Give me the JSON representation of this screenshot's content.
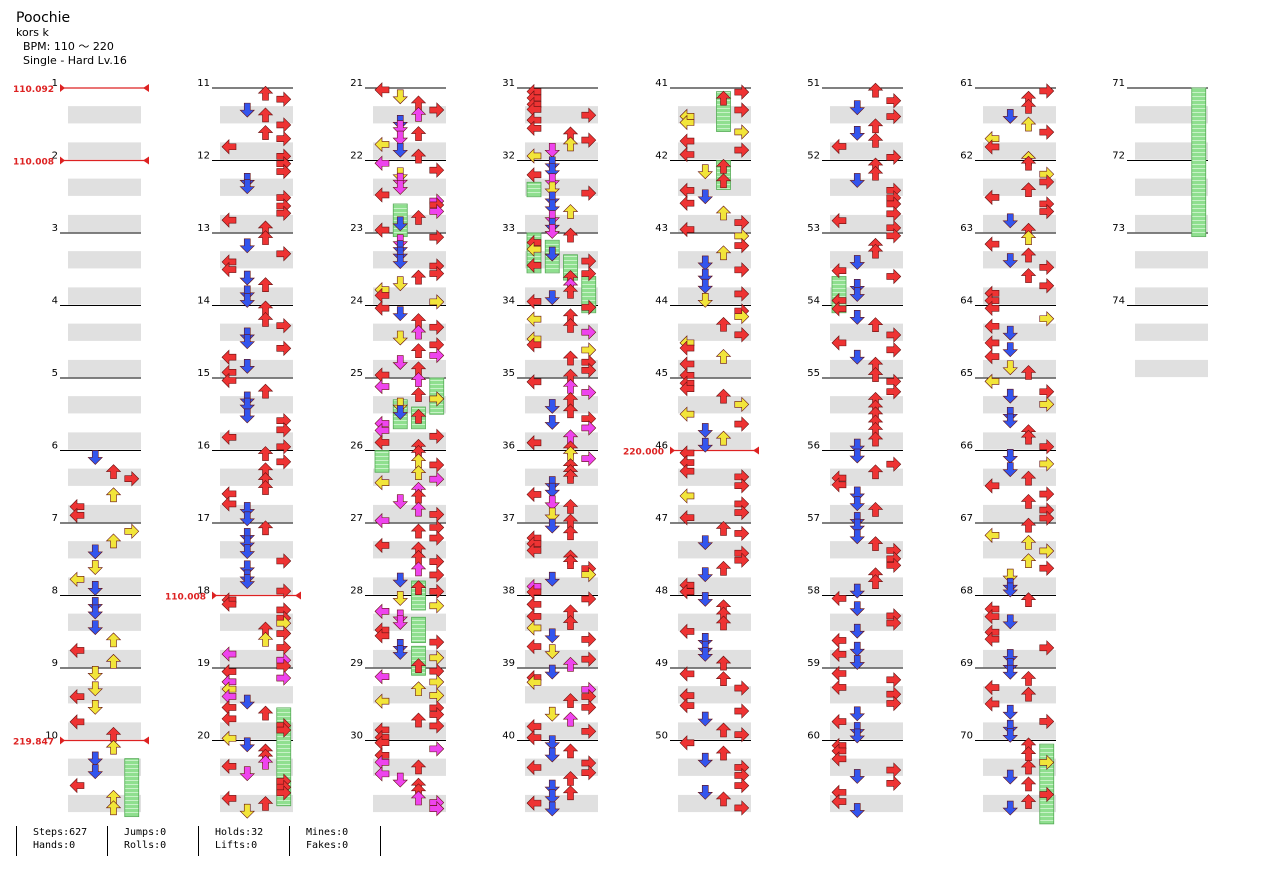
{
  "song": {
    "title": "Poochie",
    "artist": "kors k",
    "bpm_text": "BPM: 110 ～ 220",
    "difficulty_text": "Single - Hard  Lv.16"
  },
  "chart_columns": [
    {
      "start": 1,
      "end": 10
    },
    {
      "start": 11,
      "end": 20
    },
    {
      "start": 21,
      "end": 30
    },
    {
      "start": 31,
      "end": 40
    },
    {
      "start": 41,
      "end": 50
    },
    {
      "start": 51,
      "end": 60
    },
    {
      "start": 61,
      "end": 70
    },
    {
      "start": 71,
      "end": 74
    }
  ],
  "bpm_changes": [
    {
      "label": "110.092",
      "measure": 1,
      "beat": 0
    },
    {
      "label": "110.008",
      "measure": 2,
      "beat": 0
    },
    {
      "label": "219.847",
      "measure": 10,
      "beat": 0
    },
    {
      "label": "110.008",
      "measure": 18,
      "beat": 0
    },
    {
      "label": "220.000",
      "measure": 46,
      "beat": 0
    }
  ],
  "colors": {
    "left": "#ee3333",
    "down": "#3355ee",
    "up": "#ee3333",
    "right": "#ee3333",
    "yellow": "#f2e53a",
    "magenta": "#ee44ee",
    "orange": "#f08030",
    "hold": "#88dd88",
    "bpm": "#dd2222",
    "band": "#e0e0e0"
  },
  "holds": [
    {
      "lane": 3,
      "m_start": 10.25,
      "m_end": 11.05
    },
    {
      "lane": 3,
      "m_start": 19.55,
      "m_end": 20.9
    },
    {
      "lane": 1,
      "m_start": 22.6,
      "m_end": 23.05
    },
    {
      "lane": 3,
      "m_start": 25,
      "m_end": 25.5
    },
    {
      "lane": 1,
      "m_start": 25.3,
      "m_end": 25.7
    },
    {
      "lane": 2,
      "m_start": 25.4,
      "m_end": 25.7
    },
    {
      "lane": 0,
      "m_start": 26,
      "m_end": 26.3
    },
    {
      "lane": 2,
      "m_start": 27.8,
      "m_end": 28.2
    },
    {
      "lane": 2,
      "m_start": 28.3,
      "m_end": 28.65
    },
    {
      "lane": 2,
      "m_start": 28.7,
      "m_end": 29.1
    },
    {
      "lane": 0,
      "m_start": 32.3,
      "m_end": 32.5
    },
    {
      "lane": 0,
      "m_start": 33,
      "m_end": 33.55
    },
    {
      "lane": 1,
      "m_start": 33.1,
      "m_end": 33.55
    },
    {
      "lane": 2,
      "m_start": 33.3,
      "m_end": 33.65
    },
    {
      "lane": 3,
      "m_start": 33.6,
      "m_end": 34.1
    },
    {
      "lane": 2,
      "m_start": 41.05,
      "m_end": 41.6
    },
    {
      "lane": 2,
      "m_start": 42,
      "m_end": 42.4
    },
    {
      "lane": 0,
      "m_start": 53.6,
      "m_end": 54.1
    },
    {
      "lane": 3,
      "m_start": 70.05,
      "m_end": 71.15
    },
    {
      "lane": 3,
      "m_start": 71,
      "m_end": 73.05
    }
  ],
  "stats": [
    {
      "top": "Steps:627",
      "bottom": "Hands:0"
    },
    {
      "top": "Jumps:0",
      "bottom": "Rolls:0"
    },
    {
      "top": "Holds:32",
      "bottom": "Lifts:0"
    },
    {
      "top": "Mines:0",
      "bottom": "Fakes:0"
    }
  ]
}
